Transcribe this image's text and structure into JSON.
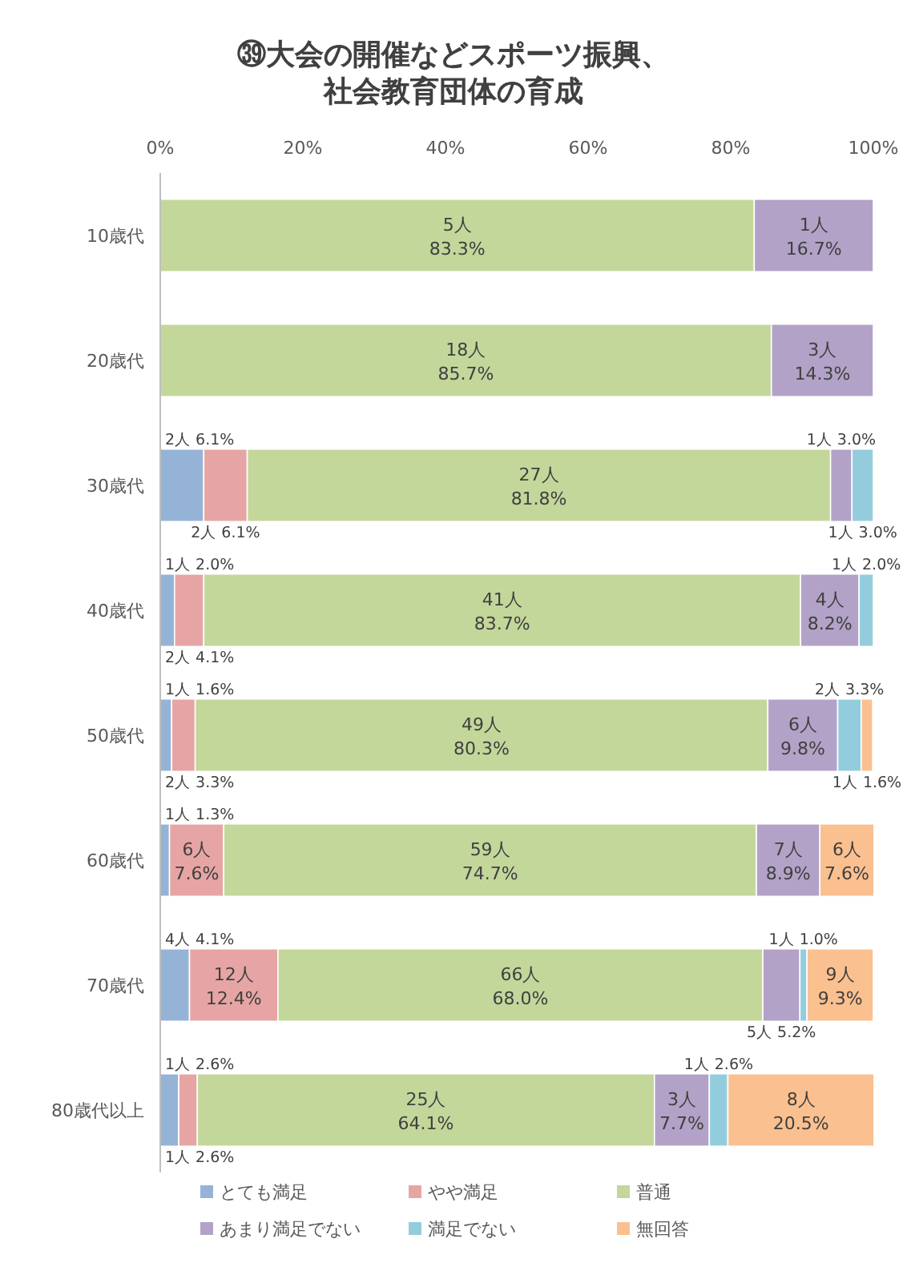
{
  "chart_data": {
    "type": "bar",
    "orientation": "horizontal",
    "stacked": true,
    "title": "㊴大会の開催などスポーツ振興、社会教育団体の育成",
    "categories": [
      "10歳代",
      "20歳代",
      "30歳代",
      "40歳代",
      "50歳代",
      "60歳代",
      "70歳代",
      "80歳代以上"
    ],
    "series": [
      {
        "name": "とても満足",
        "color": "#95b3d7",
        "values": [
          null,
          null,
          6.1,
          2.0,
          1.6,
          1.3,
          4.1,
          2.6
        ],
        "value_labels": [
          null,
          null,
          "2人\n6.1%",
          "1人\n2.0%",
          "1人\n1.6%",
          "1人\n1.3%",
          "4人\n4.1%",
          "1人\n2.6%"
        ]
      },
      {
        "name": "やや満足",
        "color": "#e6a5a4",
        "values": [
          null,
          null,
          6.1,
          4.1,
          3.3,
          7.6,
          12.4,
          2.6
        ],
        "value_labels": [
          null,
          null,
          "2人\n6.1%",
          "2人\n4.1%",
          "2人\n3.3%",
          "6人\n7.6%",
          "12人\n12.4%",
          "1人\n2.6%"
        ]
      },
      {
        "name": "普通",
        "color": "#c4d79b",
        "values": [
          83.3,
          85.7,
          81.8,
          83.7,
          80.3,
          74.7,
          68.0,
          64.1
        ],
        "value_labels": [
          "5人\n83.3%",
          "18人\n85.7%",
          "27人\n81.8%",
          "41人\n83.7%",
          "49人\n80.3%",
          "59人\n74.7%",
          "66人\n68.0%",
          "25人\n64.1%"
        ]
      },
      {
        "name": "あまり満足でない",
        "color": "#b3a2c7",
        "values": [
          16.7,
          14.3,
          3.0,
          8.2,
          9.8,
          8.9,
          5.2,
          7.7
        ],
        "value_labels": [
          "1人\n16.7%",
          "3人\n14.3%",
          "1人\n3.0%",
          "4人\n8.2%",
          "6人\n9.8%",
          "7人\n8.9%",
          "5人\n5.2%",
          "3人\n7.7%"
        ]
      },
      {
        "name": "満足でない",
        "color": "#93cddd",
        "values": [
          null,
          null,
          3.0,
          2.0,
          3.3,
          null,
          1.0,
          2.6
        ],
        "value_labels": [
          null,
          null,
          "1人\n3.0%",
          "1人\n2.0%",
          "2人\n3.3%",
          null,
          "1人\n1.0%",
          "1人\n2.6%"
        ]
      },
      {
        "name": "無回答",
        "color": "#fac08f",
        "values": [
          null,
          null,
          null,
          null,
          1.6,
          7.6,
          9.3,
          20.5
        ],
        "value_labels": [
          null,
          null,
          null,
          null,
          "1人\n1.6%",
          "6人\n7.6%",
          "9人\n9.3%",
          "8人\n20.5%"
        ]
      }
    ],
    "xlim": [
      0,
      100
    ],
    "xticks": [
      {
        "value": 0,
        "label": "0%"
      },
      {
        "value": 20,
        "label": "20%"
      },
      {
        "value": 40,
        "label": "40%"
      },
      {
        "value": 60,
        "label": "60%"
      },
      {
        "value": 80,
        "label": "80%"
      },
      {
        "value": 100,
        "label": "100%"
      }
    ],
    "grid": false,
    "legend": "bottom"
  }
}
